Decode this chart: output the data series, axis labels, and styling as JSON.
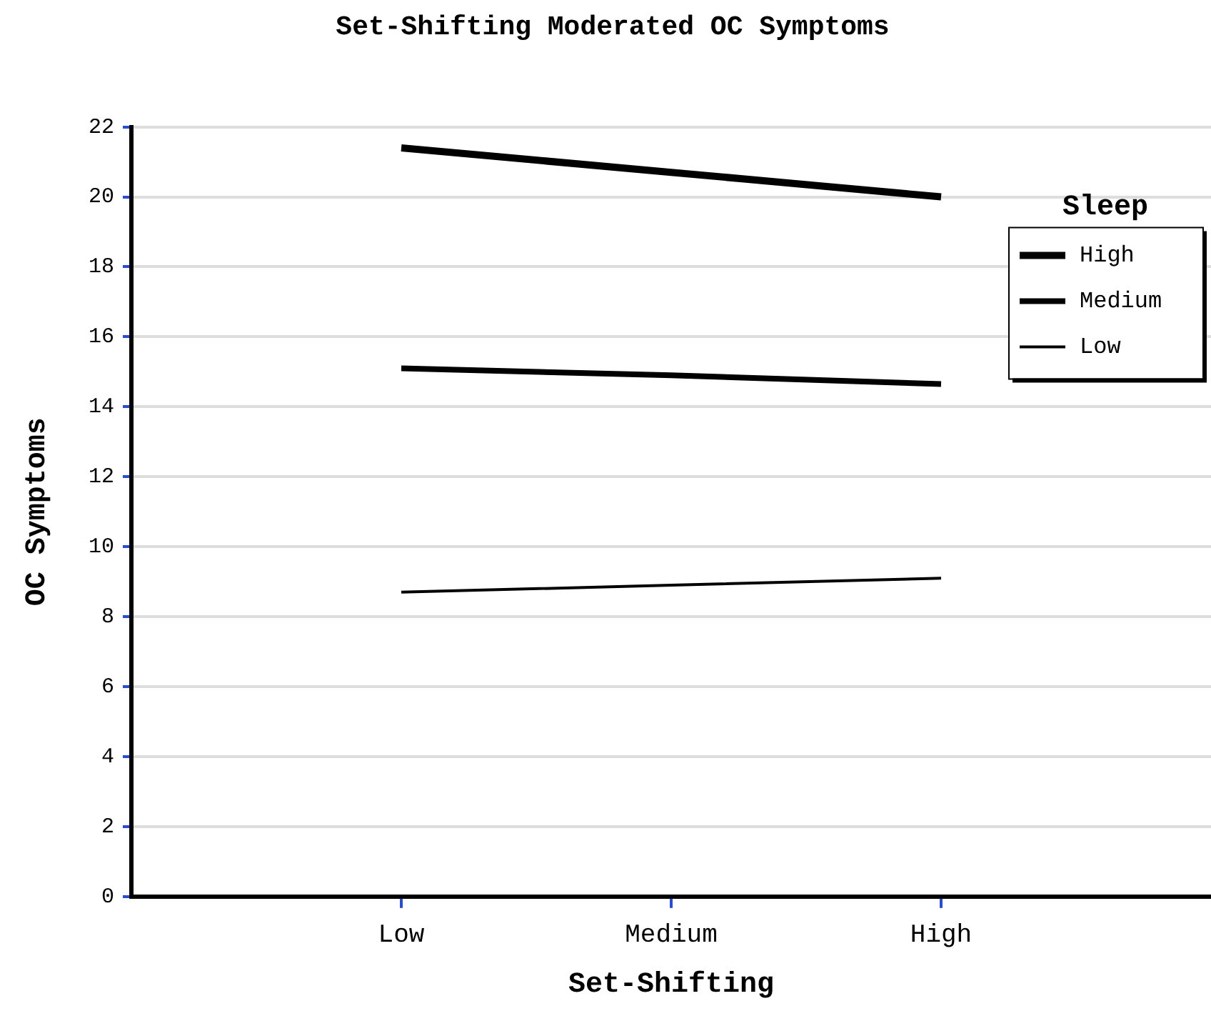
{
  "chart_data": {
    "type": "line",
    "title": "Set-Shifting Moderated OC Symptoms",
    "xlabel": "Set-Shifting",
    "ylabel": "OC Symptoms",
    "legend_title": "Sleep",
    "categories": [
      "Low",
      "Medium",
      "High"
    ],
    "series": [
      {
        "name": "High",
        "color": "#000000",
        "values": [
          21.4,
          20.7,
          20.0
        ]
      },
      {
        "name": "Medium",
        "color": "#000000",
        "values": [
          15.1,
          14.9,
          14.65
        ]
      },
      {
        "name": "Low",
        "color": "#000000",
        "values": [
          8.7,
          8.9,
          9.1
        ]
      }
    ],
    "ylim": [
      0,
      22
    ],
    "yticks": [
      0,
      2,
      4,
      6,
      8,
      10,
      12,
      14,
      16,
      18,
      20,
      22
    ],
    "grid": "y",
    "legend": "top right",
    "marker": "none",
    "line_style": "solid"
  }
}
